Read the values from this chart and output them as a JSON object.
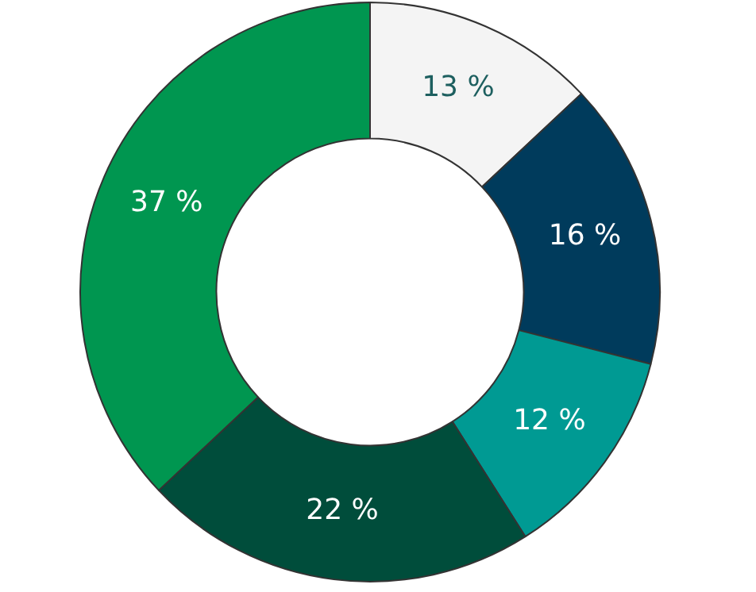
{
  "chart_data": {
    "type": "donut",
    "categories": [
      null,
      null,
      null,
      null,
      null
    ],
    "values": [
      13,
      16,
      12,
      22,
      37
    ],
    "colors": [
      "#f4f4f4",
      "#003b5c",
      "#009a93",
      "#004d3b",
      "#009650"
    ],
    "value_labels": [
      "13 %",
      "16 %",
      "12 %",
      "22 %",
      "37 %"
    ],
    "legend": false
  }
}
